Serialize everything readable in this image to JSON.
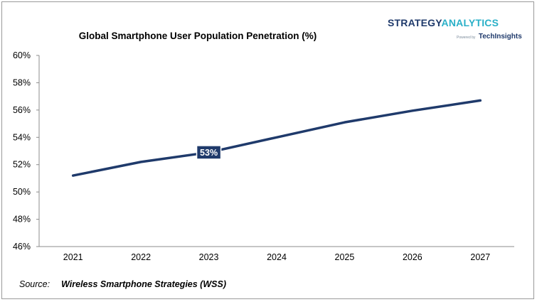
{
  "brand": {
    "name_part1": "STRATEGY",
    "name_part2": "ANALYTICS",
    "powered_by": "Powered by",
    "techinsights": "TechInsights",
    "color_primary": "#1f3a6b",
    "color_accent": "#2ab0c8"
  },
  "source": {
    "label": "Source:",
    "value": "Wireless Smartphone Strategies (WSS)"
  },
  "chart_data": {
    "type": "line",
    "title": "Global Smartphone User Population Penetration (%)",
    "xlabel": "",
    "ylabel": "",
    "x": [
      "2021",
      "2022",
      "2023",
      "2024",
      "2025",
      "2026",
      "2027"
    ],
    "series": [
      {
        "values": [
          51.2,
          52.2,
          52.9,
          54.0,
          55.1,
          55.95,
          56.7
        ],
        "color": "#1f3a6b"
      }
    ],
    "ylim": [
      46,
      60
    ],
    "yticks": [
      46,
      48,
      50,
      52,
      54,
      56,
      58,
      60
    ],
    "ytick_labels": [
      "46%",
      "48%",
      "50%",
      "52%",
      "54%",
      "56%",
      "58%",
      "60%"
    ],
    "grid": false,
    "legend": "none",
    "annotations": [
      {
        "x": "2023",
        "text": "53%"
      }
    ]
  }
}
